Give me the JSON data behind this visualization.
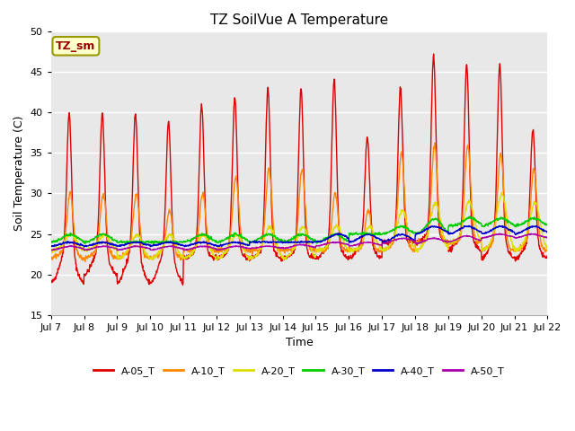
{
  "title": "TZ SoilVue A Temperature",
  "xlabel": "Time",
  "ylabel": "Soil Temperature (C)",
  "ylim": [
    15,
    50
  ],
  "xlim": [
    0,
    15
  ],
  "background_color": "#ffffff",
  "plot_bg_color": "#e8e8e8",
  "grid_color": "#ffffff",
  "annotation_text": "TZ_sm",
  "annotation_color": "#990000",
  "annotation_bg": "#ffffcc",
  "annotation_border": "#999900",
  "series": [
    {
      "label": "A-05_T",
      "color": "#dd0000"
    },
    {
      "label": "A-10_T",
      "color": "#ff8800"
    },
    {
      "label": "A-20_T",
      "color": "#dddd00"
    },
    {
      "label": "A-30_T",
      "color": "#00cc00"
    },
    {
      "label": "A-40_T",
      "color": "#0000cc"
    },
    {
      "label": "A-50_T",
      "color": "#aa00aa"
    }
  ],
  "xtick_labels": [
    "Jul 7",
    "Jul 8",
    "Jul 9",
    "Jul 10",
    "Jul 11",
    "Jul 12",
    "Jul 13",
    "Jul 14",
    "Jul 15",
    "Jul 16",
    "Jul 17",
    "Jul 18",
    "Jul 19",
    "Jul 20",
    "Jul 21",
    "Jul 22"
  ],
  "xtick_positions": [
    0,
    1,
    2,
    3,
    4,
    5,
    6,
    7,
    8,
    9,
    10,
    11,
    12,
    13,
    14,
    15
  ],
  "ytick_positions": [
    15,
    20,
    25,
    30,
    35,
    40,
    45,
    50
  ]
}
